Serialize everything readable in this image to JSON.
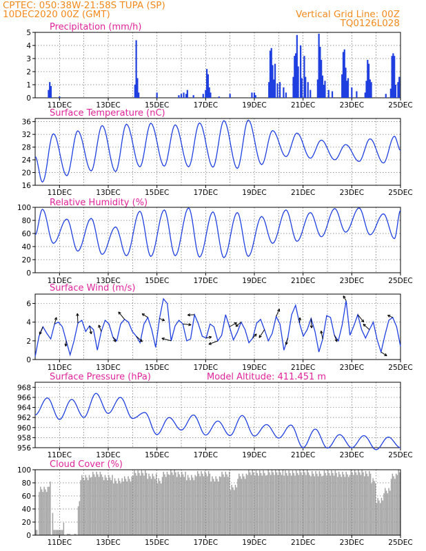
{
  "header": {
    "line1_left": "CPTEC:   050:38W-21:58S   TUPA (SP)",
    "line2_left": "10DEC2020 00Z (GMT)",
    "line2_right": "Vertical Grid Line: 00Z",
    "line3_right": "TQ0126L028"
  },
  "colors": {
    "header": "#f28a1c",
    "panel_title": "#e0239a",
    "series": "#1f3fe0",
    "cloud_fill": "#a0a0a0"
  },
  "x_axis": {
    "start_day": 10.0,
    "end_day": 25.0,
    "tick_days": [
      11,
      13,
      15,
      17,
      19,
      21,
      23,
      25
    ],
    "tick_labels": [
      "11DEC",
      "13DEC",
      "15DEC",
      "17DEC",
      "19DEC",
      "21DEC",
      "23DEC",
      "25DEC"
    ]
  },
  "chart_data": [
    {
      "id": "precip",
      "type": "bar",
      "title": "Precipitation (mm/h)",
      "ylim": [
        0,
        5
      ],
      "yticks": [
        0,
        1,
        2,
        3,
        4,
        5
      ],
      "points": [
        [
          10.55,
          0.6
        ],
        [
          10.6,
          1.2
        ],
        [
          10.65,
          0.9
        ],
        [
          11.0,
          0.1
        ],
        [
          14.1,
          1.0
        ],
        [
          14.15,
          4.4
        ],
        [
          14.2,
          1.5
        ],
        [
          14.25,
          0.4
        ],
        [
          15.0,
          0.4
        ],
        [
          15.9,
          0.2
        ],
        [
          16.0,
          0.3
        ],
        [
          16.1,
          0.4
        ],
        [
          16.2,
          0.3
        ],
        [
          16.25,
          0.6
        ],
        [
          16.5,
          0.2
        ],
        [
          16.9,
          0.3
        ],
        [
          17.0,
          0.6
        ],
        [
          17.05,
          2.2
        ],
        [
          17.1,
          1.8
        ],
        [
          17.15,
          0.8
        ],
        [
          17.2,
          0.4
        ],
        [
          17.55,
          0.1
        ],
        [
          18.0,
          0.3
        ],
        [
          18.9,
          0.4
        ],
        [
          19.0,
          0.4
        ],
        [
          19.05,
          0.2
        ],
        [
          19.6,
          1.2
        ],
        [
          19.65,
          3.6
        ],
        [
          19.7,
          3.8
        ],
        [
          19.75,
          2.5
        ],
        [
          19.8,
          1.4
        ],
        [
          19.85,
          2.6
        ],
        [
          19.95,
          1.1
        ],
        [
          20.05,
          1.2
        ],
        [
          20.2,
          0.8
        ],
        [
          20.3,
          0.4
        ],
        [
          20.6,
          1.6
        ],
        [
          20.65,
          3.2
        ],
        [
          20.7,
          3.4
        ],
        [
          20.75,
          4.8
        ],
        [
          20.8,
          2.4
        ],
        [
          20.9,
          4.0
        ],
        [
          20.95,
          1.5
        ],
        [
          21.05,
          3.2
        ],
        [
          21.1,
          1.6
        ],
        [
          21.2,
          1.2
        ],
        [
          21.3,
          0.6
        ],
        [
          21.6,
          1.4
        ],
        [
          21.65,
          4.9
        ],
        [
          21.7,
          3.9
        ],
        [
          21.75,
          2.9
        ],
        [
          21.8,
          1.7
        ],
        [
          21.85,
          1.0
        ],
        [
          21.9,
          1.3
        ],
        [
          22.05,
          0.6
        ],
        [
          22.2,
          0.5
        ],
        [
          22.6,
          1.8
        ],
        [
          22.65,
          3.5
        ],
        [
          22.7,
          3.7
        ],
        [
          22.75,
          2.3
        ],
        [
          22.8,
          1.3
        ],
        [
          22.85,
          1.5
        ],
        [
          23.0,
          0.8
        ],
        [
          23.2,
          0.5
        ],
        [
          23.55,
          0.4
        ],
        [
          23.6,
          1.3
        ],
        [
          23.65,
          2.9
        ],
        [
          23.7,
          2.6
        ],
        [
          23.75,
          1.4
        ],
        [
          23.8,
          1.2
        ],
        [
          24.4,
          0.3
        ],
        [
          24.6,
          0.7
        ],
        [
          24.65,
          3.2
        ],
        [
          24.7,
          3.4
        ],
        [
          24.75,
          3.2
        ],
        [
          24.8,
          1.0
        ],
        [
          24.9,
          1.2
        ],
        [
          24.95,
          1.6
        ]
      ]
    },
    {
      "id": "temp",
      "type": "line",
      "title": "Surface Temperature (nC)",
      "ylim": [
        16,
        37
      ],
      "yticks": [
        16,
        20,
        24,
        28,
        32,
        36
      ],
      "minima": [
        [
          10.3,
          17.0
        ],
        [
          11.3,
          19.0
        ],
        [
          12.3,
          20.5
        ],
        [
          13.3,
          20.3
        ],
        [
          14.3,
          21.8
        ],
        [
          15.3,
          22.0
        ],
        [
          16.3,
          21.8
        ],
        [
          17.3,
          21.7
        ],
        [
          18.3,
          21.3
        ],
        [
          19.3,
          22.5
        ],
        [
          20.3,
          25.0
        ],
        [
          21.3,
          24.5
        ],
        [
          22.3,
          24.0
        ],
        [
          23.3,
          23.5
        ],
        [
          24.3,
          23.0
        ]
      ],
      "maxima": [
        [
          10.75,
          32.2
        ],
        [
          11.75,
          33.1
        ],
        [
          12.75,
          34.8
        ],
        [
          13.75,
          35.2
        ],
        [
          14.75,
          35.5
        ],
        [
          15.75,
          35.0
        ],
        [
          16.75,
          35.6
        ],
        [
          17.75,
          36.3
        ],
        [
          18.75,
          36.5
        ],
        [
          19.75,
          33.2
        ],
        [
          20.75,
          32.4
        ],
        [
          21.75,
          30.2
        ],
        [
          22.75,
          28.8
        ],
        [
          23.75,
          30.6
        ],
        [
          24.75,
          31.4
        ]
      ],
      "start_value": 25.0,
      "end_value": 27.0
    },
    {
      "id": "rh",
      "type": "line",
      "title": "Relative Humidity (%)",
      "ylim": [
        0,
        100
      ],
      "yticks": [
        0,
        20,
        40,
        60,
        80,
        100
      ],
      "maxima": [
        [
          10.3,
          97
        ],
        [
          11.3,
          82
        ],
        [
          12.3,
          83
        ],
        [
          13.3,
          70
        ],
        [
          14.3,
          94
        ],
        [
          15.3,
          96
        ],
        [
          16.3,
          99
        ],
        [
          17.3,
          93
        ],
        [
          18.3,
          92
        ],
        [
          19.3,
          86
        ],
        [
          20.3,
          96
        ],
        [
          21.3,
          92
        ],
        [
          22.3,
          98
        ],
        [
          23.3,
          99
        ],
        [
          24.3,
          90
        ]
      ],
      "minima": [
        [
          10.75,
          45
        ],
        [
          11.75,
          33
        ],
        [
          12.75,
          28
        ],
        [
          13.75,
          26
        ],
        [
          14.75,
          25
        ],
        [
          15.75,
          26
        ],
        [
          16.75,
          24
        ],
        [
          17.75,
          23
        ],
        [
          18.75,
          25
        ],
        [
          19.75,
          45
        ],
        [
          20.75,
          48
        ],
        [
          21.75,
          55
        ],
        [
          22.75,
          62
        ],
        [
          23.75,
          58
        ],
        [
          24.75,
          52
        ]
      ],
      "start_value": 58,
      "end_value": 95
    },
    {
      "id": "wind",
      "type": "line",
      "title": "Surface Wind (m/s)",
      "ylim": [
        0,
        7
      ],
      "yticks": [
        0,
        2,
        4,
        6
      ],
      "values": [
        0.3,
        2.5,
        3.5,
        2.8,
        2.2,
        3.8,
        4.0,
        3.5,
        2.0,
        0.5,
        2.0,
        3.9,
        4.2,
        3.0,
        3.6,
        3.2,
        1.0,
        3.0,
        4.2,
        3.8,
        2.4,
        2.0,
        3.8,
        4.3,
        4.0,
        3.0,
        2.5,
        1.8,
        3.8,
        4.5,
        3.2,
        1.3,
        4.4,
        6.5,
        6.0,
        2.0,
        3.6,
        4.2,
        3.8,
        2.0,
        2.2,
        4.8,
        3.8,
        2.5,
        2.3,
        3.8,
        3.5,
        2.0,
        2.6,
        4.8,
        3.5,
        2.1,
        2.9,
        4.0,
        3.2,
        1.8,
        2.3,
        3.9,
        4.3,
        3.2,
        2.0,
        2.8,
        4.6,
        3.8,
        1.0,
        2.3,
        4.8,
        5.8,
        3.9,
        2.5,
        3.2,
        4.4,
        3.0,
        0.8,
        2.2,
        4.7,
        4.5,
        2.6,
        2.0,
        3.7,
        6.3,
        2.6,
        3.6,
        4.8,
        3.2,
        2.3,
        3.2,
        4.0,
        2.1,
        0.8,
        2.6,
        4.2,
        4.5,
        3.5,
        1.4
      ]
    },
    {
      "id": "pressure",
      "type": "line",
      "title": "Surface Pressure (hPa)",
      "annotation": "Model Altitude: 411.451  m",
      "ylim": [
        956,
        969
      ],
      "yticks": [
        956,
        958,
        960,
        962,
        964,
        966,
        968
      ],
      "maxima": [
        [
          10.5,
          965.9
        ],
        [
          11.5,
          965.6
        ],
        [
          12.5,
          966.8
        ],
        [
          13.5,
          966.0
        ],
        [
          14.5,
          963.0
        ],
        [
          15.5,
          962.0
        ],
        [
          16.5,
          962.5
        ],
        [
          17.5,
          961.3
        ],
        [
          18.5,
          962.4
        ],
        [
          19.5,
          960.6
        ],
        [
          20.5,
          960.5
        ],
        [
          21.5,
          959.7
        ],
        [
          22.5,
          958.6
        ],
        [
          23.5,
          958.4
        ],
        [
          24.5,
          958.1
        ]
      ],
      "minima": [
        [
          11.0,
          961.6
        ],
        [
          12.0,
          962.0
        ],
        [
          13.0,
          962.8
        ],
        [
          14.0,
          961.8
        ],
        [
          15.0,
          958.6
        ],
        [
          16.0,
          959.5
        ],
        [
          17.0,
          958.5
        ],
        [
          18.0,
          958.4
        ],
        [
          19.0,
          958.3
        ],
        [
          20.0,
          957.9
        ],
        [
          21.0,
          956.0
        ],
        [
          22.0,
          955.9
        ],
        [
          23.0,
          956.0
        ],
        [
          24.0,
          955.6
        ],
        [
          25.0,
          956.0
        ]
      ],
      "start_value": 962.5
    },
    {
      "id": "cloud",
      "type": "area",
      "title": "Cloud Cover (%)",
      "ylim": [
        0,
        100
      ],
      "yticks": [
        0,
        20,
        40,
        60,
        80,
        100
      ],
      "segments": [
        [
          10.0,
          10.1,
          8
        ],
        [
          10.15,
          10.55,
          72
        ],
        [
          10.55,
          10.65,
          80
        ],
        [
          10.65,
          10.7,
          0
        ],
        [
          10.7,
          10.75,
          40
        ],
        [
          10.75,
          11.15,
          8
        ],
        [
          11.15,
          11.2,
          25
        ],
        [
          11.3,
          11.45,
          2
        ],
        [
          11.6,
          11.7,
          2
        ],
        [
          11.75,
          11.85,
          50
        ],
        [
          11.85,
          12.3,
          90
        ],
        [
          12.3,
          12.8,
          95
        ],
        [
          12.8,
          13.2,
          90
        ],
        [
          13.2,
          13.6,
          85
        ],
        [
          13.6,
          14.0,
          88
        ],
        [
          14.0,
          14.6,
          97
        ],
        [
          14.6,
          15.0,
          92
        ],
        [
          15.0,
          15.2,
          85
        ],
        [
          15.2,
          15.5,
          95
        ],
        [
          15.5,
          15.8,
          98
        ],
        [
          15.8,
          16.2,
          95
        ],
        [
          16.2,
          16.6,
          90
        ],
        [
          16.6,
          17.2,
          96
        ],
        [
          17.2,
          17.6,
          88
        ],
        [
          17.6,
          18.0,
          95
        ],
        [
          18.0,
          18.3,
          75
        ],
        [
          18.3,
          18.7,
          92
        ],
        [
          18.7,
          19.0,
          98
        ],
        [
          19.0,
          19.5,
          97
        ],
        [
          19.5,
          20.2,
          98
        ],
        [
          20.2,
          20.8,
          97
        ],
        [
          20.8,
          21.3,
          98
        ],
        [
          21.3,
          21.8,
          96
        ],
        [
          21.8,
          22.4,
          97
        ],
        [
          22.4,
          22.9,
          95
        ],
        [
          22.9,
          23.5,
          98
        ],
        [
          23.5,
          23.8,
          96
        ],
        [
          23.8,
          24.0,
          85
        ],
        [
          24.0,
          24.3,
          55
        ],
        [
          24.3,
          24.6,
          70
        ],
        [
          24.6,
          24.85,
          92
        ],
        [
          24.85,
          25.0,
          98
        ]
      ]
    }
  ]
}
